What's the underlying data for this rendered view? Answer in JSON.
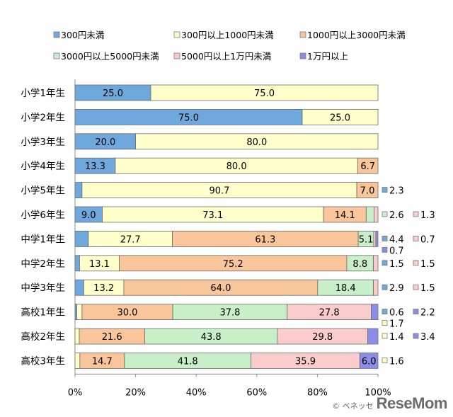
{
  "chart_data": {
    "type": "bar",
    "orientation": "horizontal",
    "stacked": true,
    "percent": true,
    "title": "",
    "xlabel": "",
    "ylabel": "",
    "xlim": [
      0,
      100
    ],
    "x_ticks": [
      "0%",
      "20%",
      "40%",
      "60%",
      "80%",
      "100%"
    ],
    "legend_position": "top",
    "grid": false,
    "categories": [
      "小学1年生",
      "小学2年生",
      "小学3年生",
      "小学4年生",
      "小学5年生",
      "小学6年生",
      "中学1年生",
      "中学2年生",
      "中学3年生",
      "高校1年生",
      "高校2年生",
      "高校3年生"
    ],
    "series": [
      {
        "name": "300円未満",
        "color": "#6fa8dc",
        "values": [
          25.0,
          75.0,
          20.0,
          13.3,
          2.3,
          9.0,
          4.4,
          1.5,
          2.9,
          0.6,
          0.0,
          0.0
        ],
        "labels": [
          "25.0",
          "75.0",
          "20.0",
          "13.3",
          "",
          "9.0",
          "",
          "",
          "",
          "",
          "",
          ""
        ]
      },
      {
        "name": "300円以上1000円未満",
        "color": "#ffffcc",
        "values": [
          75.0,
          25.0,
          80.0,
          80.0,
          90.7,
          73.1,
          27.7,
          13.1,
          13.2,
          1.7,
          1.4,
          1.6
        ],
        "labels": [
          "75.0",
          "25.0",
          "80.0",
          "80.0",
          "90.7",
          "73.1",
          "27.7",
          "13.1",
          "13.2",
          "",
          "",
          ""
        ]
      },
      {
        "name": "1000円以上3000円未満",
        "color": "#f9c59b",
        "values": [
          0.0,
          0.0,
          0.0,
          6.7,
          7.0,
          14.1,
          61.3,
          75.2,
          64.0,
          30.0,
          21.6,
          14.7
        ],
        "labels": [
          "",
          "",
          "",
          "6.7",
          "7.0",
          "14.1",
          "61.3",
          "75.2",
          "64.0",
          "30.0",
          "21.6",
          "14.7"
        ]
      },
      {
        "name": "3000円以上5000円未満",
        "color": "#c9efc9",
        "values": [
          0.0,
          0.0,
          0.0,
          0.0,
          0.0,
          2.6,
          5.1,
          8.8,
          18.4,
          37.8,
          43.8,
          41.8
        ],
        "labels": [
          "",
          "",
          "",
          "",
          "",
          "",
          "5.1",
          "8.8",
          "18.4",
          "37.8",
          "43.8",
          "41.8"
        ]
      },
      {
        "name": "5000円以上1万円未満",
        "color": "#fbcccc",
        "values": [
          0.0,
          0.0,
          0.0,
          0.0,
          0.0,
          1.3,
          0.7,
          1.5,
          1.5,
          27.8,
          29.8,
          35.9
        ],
        "labels": [
          "",
          "",
          "",
          "",
          "",
          "",
          "",
          "",
          "",
          "27.8",
          "29.8",
          "35.9"
        ]
      },
      {
        "name": "1万円以上",
        "color": "#8b8de8",
        "values": [
          0.0,
          0.0,
          0.0,
          0.0,
          0.0,
          0.0,
          0.7,
          0.0,
          0.0,
          2.2,
          3.4,
          6.0
        ],
        "labels": [
          "",
          "",
          "",
          "",
          "",
          "",
          "",
          "",
          "",
          "",
          "",
          "6.0"
        ]
      }
    ],
    "side_annotations": [
      [],
      [],
      [],
      [],
      [
        {
          "text": "2.3",
          "series": 0
        }
      ],
      [
        {
          "text": "2.6",
          "series": 3
        },
        {
          "text": "1.3",
          "series": 4
        }
      ],
      [
        {
          "text": "4.4",
          "series": 0
        },
        {
          "text": "0.7",
          "series": 4
        },
        {
          "text": "0.7",
          "series": 5,
          "row": 2
        }
      ],
      [
        {
          "text": "1.5",
          "series": 0
        },
        {
          "text": "1.5",
          "series": 4
        }
      ],
      [
        {
          "text": "2.9",
          "series": 0
        },
        {
          "text": "1.5",
          "series": 4
        }
      ],
      [
        {
          "text": "0.6",
          "series": 0
        },
        {
          "text": "2.2",
          "series": 5
        },
        {
          "text": "1.7",
          "series": 1,
          "row": 2
        }
      ],
      [
        {
          "text": "1.4",
          "series": 1
        },
        {
          "text": "3.4",
          "series": 5
        }
      ],
      [
        {
          "text": "1.6",
          "series": 1
        }
      ]
    ]
  },
  "watermark": {
    "copyright": "© ベネッセ",
    "brand": "ReseMom"
  }
}
